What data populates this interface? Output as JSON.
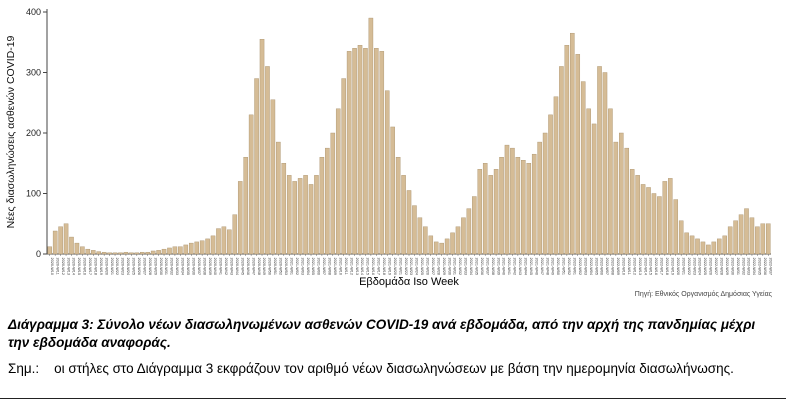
{
  "chart_data": {
    "type": "bar",
    "title": "",
    "xlabel": "Εβδομάδα Iso Week",
    "ylabel": "Νέες διασωληνώσεις ασθενών COVID-19",
    "ylim": [
      0,
      400
    ],
    "yticks": [
      0,
      100,
      200,
      300,
      400
    ],
    "grid": false,
    "legend": "none",
    "bar_color": "#d5bc96",
    "bar_border_color": "#a8906a",
    "source": "Πηγή: Εθνικός Οργανισμός Δημόσιας Υγείας",
    "categories": [
      "2020-W10",
      "2020-W11",
      "2020-W12",
      "2020-W13",
      "2020-W14",
      "2020-W15",
      "2020-W16",
      "2020-W17",
      "2020-W18",
      "2020-W19",
      "2020-W20",
      "2020-W21",
      "2020-W22",
      "2020-W23",
      "2020-W24",
      "2020-W25",
      "2020-W26",
      "2020-W27",
      "2020-W28",
      "2020-W29",
      "2020-W30",
      "2020-W31",
      "2020-W32",
      "2020-W33",
      "2020-W34",
      "2020-W35",
      "2020-W36",
      "2020-W37",
      "2020-W38",
      "2020-W39",
      "2020-W40",
      "2020-W41",
      "2020-W42",
      "2020-W43",
      "2020-W44",
      "2020-W45",
      "2020-W46",
      "2020-W47",
      "2020-W48",
      "2020-W49",
      "2020-W50",
      "2020-W51",
      "2020-W52",
      "2020-W53",
      "2021-W01",
      "2021-W02",
      "2021-W03",
      "2021-W04",
      "2021-W05",
      "2021-W06",
      "2021-W07",
      "2021-W08",
      "2021-W09",
      "2021-W10",
      "2021-W11",
      "2021-W12",
      "2021-W13",
      "2021-W14",
      "2021-W15",
      "2021-W16",
      "2021-W17",
      "2021-W18",
      "2021-W19",
      "2021-W20",
      "2021-W21",
      "2021-W22",
      "2021-W23",
      "2021-W24",
      "2021-W25",
      "2021-W26",
      "2021-W27",
      "2021-W28",
      "2021-W29",
      "2021-W30",
      "2021-W31",
      "2021-W32",
      "2021-W33",
      "2021-W34",
      "2021-W35",
      "2021-W36",
      "2021-W37",
      "2021-W38",
      "2021-W39",
      "2021-W40",
      "2021-W41",
      "2021-W42",
      "2021-W43",
      "2021-W44",
      "2021-W45",
      "2021-W46",
      "2021-W47",
      "2021-W48",
      "2021-W49",
      "2021-W50",
      "2021-W51",
      "2021-W52",
      "2022-W01",
      "2022-W02",
      "2022-W03",
      "2022-W04",
      "2022-W05",
      "2022-W06",
      "2022-W07",
      "2022-W08",
      "2022-W09",
      "2022-W10",
      "2022-W11",
      "2022-W12",
      "2022-W13",
      "2022-W14",
      "2022-W15",
      "2022-W16",
      "2022-W17",
      "2022-W18",
      "2022-W19",
      "2022-W20",
      "2022-W21",
      "2022-W22",
      "2022-W23",
      "2022-W24",
      "2022-W25",
      "2022-W26",
      "2022-W27",
      "2022-W28",
      "2022-W29",
      "2022-W30",
      "2022-W31",
      "2022-W32",
      "2022-W33",
      "2022-W34",
      "2022-W35",
      "2022-W36",
      "2022-W37"
    ],
    "values": [
      12,
      38,
      45,
      50,
      28,
      18,
      12,
      8,
      6,
      4,
      3,
      2,
      2,
      2,
      3,
      2,
      2,
      3,
      3,
      5,
      6,
      8,
      10,
      12,
      12,
      15,
      18,
      20,
      22,
      25,
      30,
      42,
      45,
      40,
      65,
      120,
      160,
      230,
      290,
      355,
      310,
      255,
      185,
      150,
      130,
      120,
      125,
      130,
      115,
      130,
      160,
      175,
      200,
      240,
      290,
      335,
      340,
      345,
      340,
      390,
      340,
      335,
      270,
      210,
      160,
      130,
      105,
      80,
      60,
      45,
      30,
      20,
      18,
      25,
      35,
      45,
      60,
      75,
      95,
      140,
      150,
      130,
      140,
      160,
      180,
      175,
      160,
      155,
      150,
      165,
      185,
      200,
      230,
      260,
      310,
      345,
      365,
      330,
      285,
      240,
      215,
      310,
      300,
      240,
      185,
      200,
      175,
      140,
      130,
      115,
      110,
      100,
      95,
      120,
      125,
      90,
      55,
      35,
      30,
      25,
      20,
      15,
      20,
      25,
      30,
      45,
      55,
      65,
      75,
      60,
      45,
      50,
      50
    ]
  },
  "caption": "Διάγραμμα 3: Σύνολο νέων διασωληνωμένων ασθενών COVID-19 ανά εβδομάδα, από την αρχή της πανδημίας μέχρι την εβδομάδα αναφοράς.",
  "note": "Σημ.:    οι στήλες στο Διάγραμμα 3 εκφράζουν τον αριθμό νέων διασωληνώσεων με βάση την ημερομηνία διασωλήνωσης."
}
